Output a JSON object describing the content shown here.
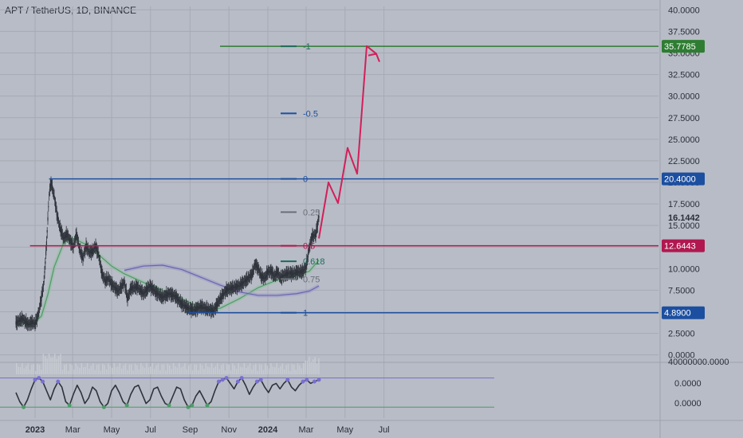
{
  "header": {
    "title": "APT / TetherUS, 1D, BINANCE"
  },
  "colors": {
    "background": "#b8bcc6",
    "grid": "#a6aab4",
    "candle": "#2e323a",
    "fib_blue": "#1c4fa0",
    "fib_green": "#2e7d32",
    "fib_red": "#b0184f",
    "fib_gray": "#6b6f78",
    "fib_teal": "#1e6b5a",
    "projection": "#d21f5a",
    "ma_green": "#8fbf9f",
    "ma_purple": "#9a95c8",
    "osc_line": "#2e323a",
    "osc_band": "#7a6fd0",
    "text_dark": "#2b2f3a"
  },
  "chart_data": [
    {
      "type": "line",
      "title": "APT / TetherUS, 1D, BINANCE",
      "price_axis": {
        "ticks": [
          "0.0000",
          "2.5000",
          "5.0000",
          "7.5000",
          "10.0000",
          "12.5000",
          "15.0000",
          "17.5000",
          "20.0000",
          "22.5000",
          "25.0000",
          "27.5000",
          "30.0000",
          "32.5000",
          "35.0000",
          "37.5000",
          "40.0000"
        ],
        "ylim": [
          -0.4,
          40.4
        ]
      },
      "time_axis": {
        "labels": [
          "2023",
          "Mar",
          "May",
          "Jul",
          "Sep",
          "Nov",
          "2024",
          "Mar",
          "May",
          "Jul"
        ],
        "bold": [
          "2023",
          "2024"
        ],
        "label_days": [
          0,
          59,
          120,
          181,
          243,
          304,
          365,
          425,
          486,
          547
        ]
      },
      "price_series": {
        "days": [
          -30,
          -20,
          -10,
          -5,
          0,
          5,
          10,
          14,
          18,
          22,
          25,
          30,
          35,
          40,
          45,
          50,
          55,
          60,
          65,
          70,
          75,
          80,
          85,
          90,
          95,
          100,
          105,
          110,
          115,
          120,
          130,
          140,
          145,
          150,
          160,
          170,
          180,
          190,
          200,
          210,
          220,
          230,
          240,
          250,
          260,
          270,
          280,
          290,
          300,
          310,
          320,
          330,
          340,
          345,
          350,
          355,
          360,
          365,
          370,
          375,
          380,
          385,
          390,
          395,
          400,
          405,
          410,
          415,
          420,
          425,
          430,
          435,
          440,
          445
        ],
        "values": [
          3.7,
          4.2,
          3.5,
          3.8,
          3.6,
          4.7,
          6.6,
          8.5,
          12.9,
          18.6,
          20.0,
          18.4,
          16.0,
          14.5,
          13.5,
          14.0,
          13.2,
          12.5,
          14.0,
          12.2,
          11.2,
          12.6,
          11.9,
          12.0,
          12.6,
          11.5,
          9.4,
          8.6,
          8.9,
          8.2,
          7.4,
          8.4,
          6.5,
          7.7,
          7.9,
          7.1,
          8.0,
          7.2,
          6.7,
          7.1,
          6.8,
          5.9,
          5.4,
          5.2,
          5.6,
          5.3,
          5.1,
          6.5,
          7.5,
          7.8,
          8.0,
          8.6,
          9.3,
          10.5,
          10.0,
          9.1,
          8.9,
          9.6,
          9.7,
          9.1,
          9.6,
          8.9,
          9.2,
          9.4,
          9.5,
          9.4,
          9.6,
          9.6,
          9.7,
          10.2,
          12.5,
          13.8,
          13.9,
          16.0
        ]
      },
      "projection": {
        "days": [
          445,
          460,
          475,
          490,
          505,
          520,
          535
        ],
        "values": [
          13.5,
          20.0,
          17.6,
          24.0,
          21.0,
          35.8,
          34.9
        ]
      },
      "fib_levels": [
        {
          "label": "-1",
          "price": 35.7785,
          "color_key": "fib_teal"
        },
        {
          "label": "-0.5",
          "price": 28.0,
          "color_key": "fib_blue"
        },
        {
          "label": "0",
          "price": 20.4,
          "color_key": "fib_blue"
        },
        {
          "label": "0.25",
          "price": 16.55,
          "color_key": "fib_gray"
        },
        {
          "label": "0.5",
          "price": 12.6443,
          "color_key": "fib_red"
        },
        {
          "label": "0.618",
          "price": 10.85,
          "color_key": "fib_teal"
        },
        {
          "label": "0.75",
          "price": 8.8,
          "color_key": "fib_gray"
        },
        {
          "label": "1",
          "price": 4.89,
          "color_key": "fib_blue"
        }
      ],
      "horizontal_lines": [
        {
          "price": 35.7785,
          "label": "35.7785",
          "color_key": "fib_green",
          "start_day": 290
        },
        {
          "price": 20.4,
          "label": "20.4000",
          "color_key": "fib_blue",
          "start_day": 22
        },
        {
          "price": 12.6443,
          "label": "12.6443",
          "color_key": "fib_red",
          "start_day": -8
        },
        {
          "price": 4.89,
          "label": "4.8900",
          "color_key": "fib_blue",
          "start_day": 240
        }
      ],
      "current_price": "16.1442",
      "ma_green": {
        "days": [
          -30,
          0,
          10,
          20,
          30,
          45,
          60,
          80,
          100,
          120,
          140,
          170,
          200,
          230,
          260,
          290,
          320,
          350,
          380,
          410,
          430,
          445
        ],
        "values": [
          3.6,
          3.8,
          4.5,
          7.0,
          10.2,
          13.0,
          13.5,
          12.8,
          11.6,
          10.3,
          9.4,
          8.4,
          7.5,
          6.5,
          5.5,
          5.4,
          6.5,
          7.8,
          8.7,
          9.2,
          9.7,
          11.0
        ]
      },
      "ma_purple": {
        "days": [
          140,
          170,
          200,
          230,
          260,
          290,
          320,
          350,
          380,
          410,
          430,
          445
        ],
        "values": [
          9.8,
          10.3,
          10.4,
          9.9,
          9.0,
          8.1,
          7.3,
          6.9,
          6.9,
          7.1,
          7.4,
          8.0
        ]
      },
      "volume_axis": {
        "label": "40000000.0000"
      }
    },
    {
      "type": "line",
      "title": "",
      "axis_ticks": [
        "0.0000",
        "0.0000"
      ],
      "band_values": [
        1.0,
        -0.6
      ],
      "series": {
        "days": [
          -30,
          -24,
          -18,
          -12,
          -6,
          0,
          6,
          12,
          18,
          24,
          30,
          36,
          42,
          48,
          54,
          60,
          66,
          72,
          78,
          84,
          90,
          96,
          102,
          108,
          114,
          120,
          126,
          132,
          138,
          144,
          150,
          156,
          162,
          168,
          174,
          180,
          186,
          192,
          198,
          204,
          210,
          216,
          222,
          228,
          234,
          240,
          246,
          252,
          258,
          264,
          270,
          276,
          282,
          288,
          294,
          300,
          306,
          312,
          318,
          324,
          330,
          336,
          342,
          348,
          354,
          360,
          366,
          372,
          378,
          384,
          390,
          396,
          402,
          408,
          414,
          420,
          426,
          432,
          438,
          445
        ],
        "values": [
          0.2,
          -0.3,
          -0.6,
          -0.2,
          0.4,
          0.9,
          1.0,
          0.8,
          0.3,
          -0.2,
          0.4,
          0.8,
          0.5,
          -0.3,
          -0.5,
          0.1,
          0.6,
          0.2,
          -0.4,
          -0.1,
          0.5,
          0.3,
          -0.3,
          -0.6,
          -0.4,
          0.3,
          0.6,
          0.2,
          -0.3,
          -0.5,
          0.1,
          0.5,
          0.6,
          0.1,
          -0.4,
          -0.2,
          0.4,
          0.5,
          0.0,
          -0.4,
          -0.5,
          0.0,
          0.5,
          0.4,
          -0.2,
          -0.6,
          -0.5,
          0.0,
          0.3,
          -0.1,
          -0.5,
          -0.3,
          0.3,
          0.8,
          0.9,
          1.0,
          0.7,
          0.4,
          0.8,
          1.0,
          0.6,
          0.1,
          0.5,
          0.8,
          0.9,
          0.5,
          0.2,
          0.6,
          0.7,
          0.4,
          0.7,
          0.9,
          0.5,
          0.3,
          0.6,
          0.8,
          0.9,
          0.7,
          0.8,
          0.9
        ]
      }
    }
  ]
}
